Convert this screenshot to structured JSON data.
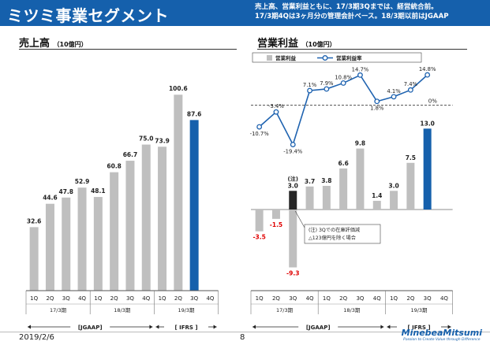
{
  "header": {
    "title": "ミツミ事業セグメント",
    "note_lines": [
      "売上高、営業利益ともに、17/3期3Qまでは、経営統合前。",
      "17/3期4Qは3ヶ月分の管理会計ベース。18/3期以前はJGAAP"
    ]
  },
  "footer": {
    "date": "2019/2/6",
    "page": "8",
    "logo_name": "MinebeaMitsumi",
    "logo_tagline": "Passion to Create Value through Difference"
  },
  "colors": {
    "header_bg": "#1560ac",
    "bar_gray": "#bfbfbf",
    "bar_highlight": "#1560ac",
    "bar_dark": "#262626",
    "line_blue": "#1f63b0",
    "negative_label": "#e00000"
  },
  "chart_data": [
    {
      "type": "bar",
      "title": "売上高",
      "unit": "（10億円）",
      "categories": [
        "1Q",
        "2Q",
        "3Q",
        "4Q",
        "1Q",
        "2Q",
        "3Q",
        "4Q",
        "1Q",
        "2Q",
        "3Q",
        "4Q"
      ],
      "values": [
        32.6,
        44.6,
        47.8,
        52.9,
        48.1,
        60.8,
        66.7,
        75.0,
        73.9,
        100.6,
        87.6,
        null
      ],
      "value_labels": [
        "32.6",
        "44.6",
        "47.8",
        "52.9",
        "48.1",
        "60.8",
        "66.7",
        "75.0",
        "73.9",
        "100.6",
        "87.6",
        ""
      ],
      "highlight_index": 10,
      "ylim": [
        0,
        110
      ],
      "period_groups": [
        {
          "label": "17/3期",
          "span": 4
        },
        {
          "label": "18/3期",
          "span": 4
        },
        {
          "label": "19/3期",
          "span": 4
        }
      ],
      "standards": [
        {
          "label": "[JGAAP]",
          "span": 8
        },
        {
          "label": "[ IFRS ]",
          "span": 4
        }
      ]
    },
    {
      "type": "bar+line",
      "title": "営業利益",
      "unit": "（10億円）",
      "legend": [
        "営業利益",
        "営業利益率"
      ],
      "categories": [
        "1Q",
        "2Q",
        "3Q",
        "4Q",
        "1Q",
        "2Q",
        "3Q",
        "4Q",
        "1Q",
        "2Q",
        "3Q",
        "4Q"
      ],
      "bar_values": [
        -3.5,
        -1.5,
        -9.3,
        3.7,
        3.8,
        6.6,
        9.8,
        1.4,
        3.0,
        7.5,
        13.0,
        null
      ],
      "bar_labels": [
        "-3.5",
        "-1.5",
        "-9.3",
        "3.7",
        "3.8",
        "6.6",
        "9.8",
        "1.4",
        "3.0",
        "7.5",
        "13.0",
        ""
      ],
      "dark_overlay_index": 2,
      "dark_overlay_value": 3.0,
      "dark_overlay_label": "3.0",
      "overlay_note_marker": "(注)",
      "overlay_note_lines": [
        "(注)  3Qでの在庫評価減",
        "△123億円を除く場合"
      ],
      "highlight_index": 10,
      "ylim": [
        -10,
        14
      ],
      "margin_values": [
        -10.7,
        -3.4,
        -19.4,
        7.1,
        7.9,
        10.8,
        14.7,
        1.8,
        4.1,
        7.4,
        14.8,
        null
      ],
      "margin_labels": [
        "-10.7%",
        "-3.4%",
        "-19.4%",
        "7.1%",
        "7.9%",
        "10.8%",
        "14.7%",
        "1.8%",
        "4.1%",
        "7.4%",
        "14.8%",
        ""
      ],
      "margin_zero_label": "0%",
      "margin_ylim": [
        -25,
        16
      ],
      "period_groups": [
        {
          "label": "17/3期",
          "span": 4
        },
        {
          "label": "18/3期",
          "span": 4
        },
        {
          "label": "19/3期",
          "span": 4
        }
      ],
      "standards": [
        {
          "label": "[JGAAP]",
          "span": 8
        },
        {
          "label": "[ IFRS ]",
          "span": 4
        }
      ]
    }
  ]
}
